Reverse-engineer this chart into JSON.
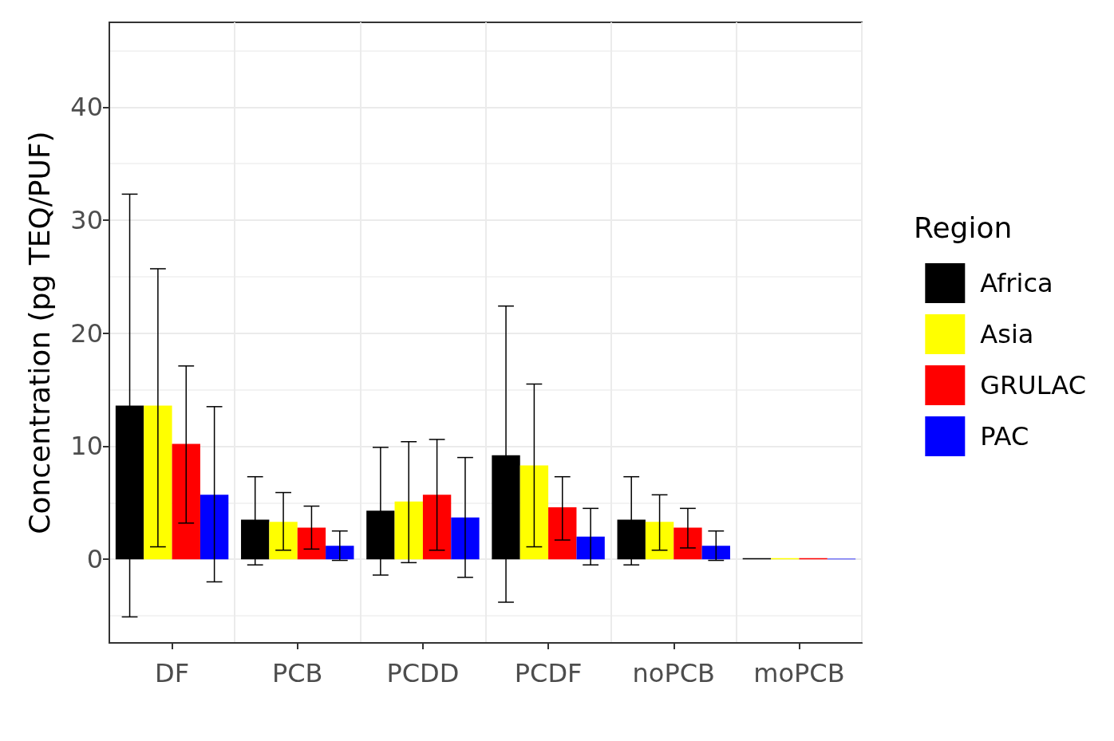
{
  "chart_data": {
    "type": "bar",
    "ylabel": "Concentration (pg TEQ/PUF)",
    "legend_title": "Region",
    "categories": [
      "DF",
      "PCB",
      "PCDD",
      "PCDF",
      "noPCB",
      "moPCB"
    ],
    "series": [
      {
        "name": "Africa",
        "color": "#000000",
        "values": [
          13.6,
          3.5,
          4.3,
          9.2,
          3.5,
          0.1
        ],
        "errors": [
          [
            -5.1,
            32.3
          ],
          [
            -0.5,
            7.3
          ],
          [
            -1.4,
            9.9
          ],
          [
            -3.8,
            22.4
          ],
          [
            -0.5,
            7.3
          ],
          null
        ]
      },
      {
        "name": "Asia",
        "color": "#ffff00",
        "values": [
          13.6,
          3.3,
          5.1,
          8.3,
          3.3,
          0.1
        ],
        "errors": [
          [
            1.1,
            25.7
          ],
          [
            0.8,
            5.9
          ],
          [
            -0.3,
            10.4
          ],
          [
            1.1,
            15.5
          ],
          [
            0.8,
            5.7
          ],
          null
        ]
      },
      {
        "name": "GRULAC",
        "color": "#ff0000",
        "values": [
          10.2,
          2.8,
          5.7,
          4.6,
          2.8,
          0.1
        ],
        "errors": [
          [
            3.2,
            17.1
          ],
          [
            0.9,
            4.7
          ],
          [
            0.8,
            10.6
          ],
          [
            1.7,
            7.3
          ],
          [
            1.0,
            4.5
          ],
          null
        ]
      },
      {
        "name": "PAC",
        "color": "#0000ff",
        "values": [
          5.7,
          1.2,
          3.7,
          2.0,
          1.2,
          0.05
        ],
        "errors": [
          [
            -2.0,
            13.5
          ],
          [
            -0.1,
            2.5
          ],
          [
            -1.6,
            9.0
          ],
          [
            -0.5,
            4.5
          ],
          [
            -0.1,
            2.5
          ],
          null
        ]
      }
    ],
    "ylim": [
      -7.4,
      47.5
    ],
    "yticks": [
      0,
      10,
      20,
      30,
      40
    ],
    "grid": true,
    "legend": "right"
  }
}
